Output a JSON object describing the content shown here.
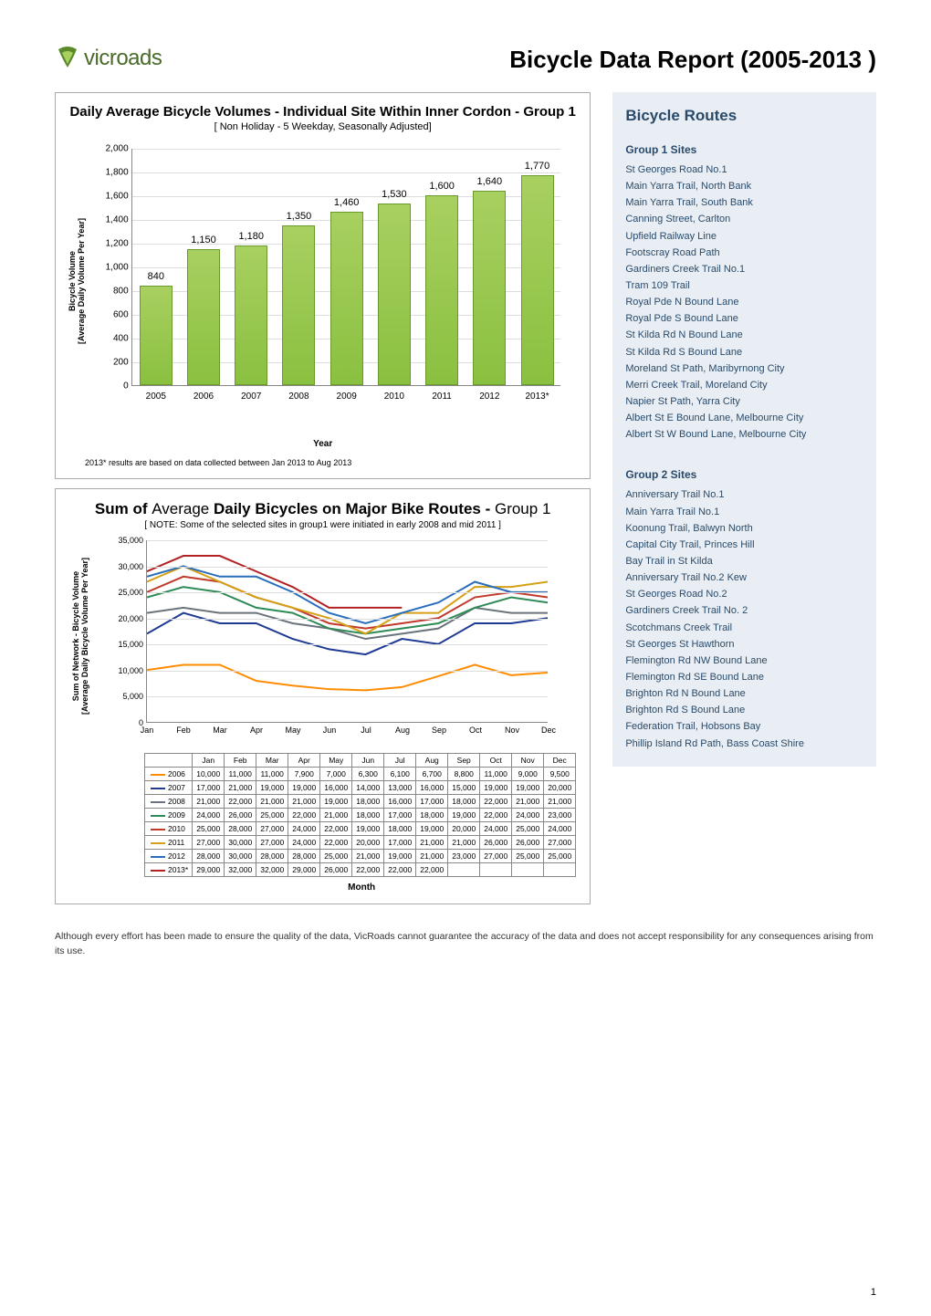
{
  "logo_text": "vicroads",
  "report_title": "Bicycle Data Report (2005-2013 )",
  "chart1": {
    "title": "Daily Average Bicycle Volumes - Individual Site Within Inner Cordon - Group 1",
    "subtitle": "[ Non Holiday - 5 Weekday, Seasonally Adjusted]",
    "y_axis_label": "Bicycle Volume\n[Average Daily Volume Per Year]",
    "x_axis_label": "Year",
    "note": "2013* results are based on data collected between Jan 2013 to Aug 2013",
    "ylim": [
      0,
      2000
    ],
    "ytick_step": 200,
    "categories": [
      "2005",
      "2006",
      "2007",
      "2008",
      "2009",
      "2010",
      "2011",
      "2012",
      "2013*"
    ],
    "values": [
      840,
      1150,
      1180,
      1350,
      1460,
      1530,
      1600,
      1640,
      1770
    ],
    "bar_fill_top": "#a8d060",
    "bar_fill_bottom": "#8ac040",
    "bar_border": "#6a9a2a",
    "grid_color": "#dddddd"
  },
  "chart2": {
    "title_prefix": "Sum of ",
    "title_mid": "Average",
    "title_bold": " Daily Bicycles on Major Bike Routes - ",
    "title_suffix": "Group 1",
    "subtitle": "[ NOTE: Some of the selected sites in group1 were initiated in early 2008 and mid 2011 ]",
    "y_axis_label": "Sum of Network - Bicycle Volume\n[Average Daily Bicycle Volume Per Year]",
    "x_axis_label": "Month",
    "ylim": [
      0,
      35000
    ],
    "ytick_step": 5000,
    "months": [
      "Jan",
      "Feb",
      "Mar",
      "Apr",
      "May",
      "Jun",
      "Jul",
      "Aug",
      "Sep",
      "Oct",
      "Nov",
      "Dec"
    ],
    "series": [
      {
        "year": "2006",
        "color": "#ff8c00",
        "values": [
          10000,
          11000,
          11000,
          7900,
          7000,
          6300,
          6100,
          6700,
          8800,
          11000,
          9000,
          9500
        ]
      },
      {
        "year": "2007",
        "color": "#1f3a93",
        "values": [
          17000,
          21000,
          19000,
          19000,
          16000,
          14000,
          13000,
          16000,
          15000,
          19000,
          19000,
          20000
        ]
      },
      {
        "year": "2008",
        "color": "#6a737b",
        "values": [
          21000,
          22000,
          21000,
          21000,
          19000,
          18000,
          16000,
          17000,
          18000,
          22000,
          21000,
          21000
        ]
      },
      {
        "year": "2009",
        "color": "#2e8b57",
        "values": [
          24000,
          26000,
          25000,
          22000,
          21000,
          18000,
          17000,
          18000,
          19000,
          22000,
          24000,
          23000
        ]
      },
      {
        "year": "2010",
        "color": "#c0392b",
        "values": [
          25000,
          28000,
          27000,
          24000,
          22000,
          19000,
          18000,
          19000,
          20000,
          24000,
          25000,
          24000
        ]
      },
      {
        "year": "2011",
        "color": "#d4a017",
        "values": [
          27000,
          30000,
          27000,
          24000,
          22000,
          20000,
          17000,
          21000,
          21000,
          26000,
          26000,
          27000
        ]
      },
      {
        "year": "2012",
        "color": "#2a6ebb",
        "values": [
          28000,
          30000,
          28000,
          28000,
          25000,
          21000,
          19000,
          21000,
          23000,
          27000,
          25000,
          25000
        ]
      },
      {
        "year": "2013*",
        "color": "#b22222",
        "values": [
          29000,
          32000,
          32000,
          29000,
          26000,
          22000,
          22000,
          22000,
          null,
          null,
          null,
          null
        ]
      }
    ],
    "grid_color": "#dddddd"
  },
  "sidebar": {
    "title": "Bicycle Routes",
    "group1_title": "Group 1 Sites",
    "group1_sites": [
      "St Georges Road No.1",
      "Main Yarra Trail, North Bank",
      "Main Yarra Trail, South Bank",
      "Canning Street, Carlton",
      "Upfield Railway Line",
      "Footscray Road Path",
      "Gardiners Creek Trail No.1",
      "Tram 109 Trail",
      "Royal Pde N Bound Lane",
      "Royal Pde S Bound Lane",
      "St Kilda Rd N Bound Lane",
      "St Kilda Rd S Bound Lane",
      "Moreland St Path, Maribyrnong City",
      "Merri Creek Trail, Moreland City",
      "Napier St Path, Yarra City",
      "Albert St E Bound Lane, Melbourne City",
      "Albert St W Bound Lane, Melbourne City"
    ],
    "group2_title": "Group 2 Sites",
    "group2_sites": [
      "Anniversary Trail No.1",
      "Main Yarra Trail No.1",
      "Koonung Trail, Balwyn North",
      "Capital City Trail, Princes Hill",
      "Bay Trail in St Kilda",
      "Anniversary Trail No.2 Kew",
      "St Georges Road No.2",
      "Gardiners Creek Trail No. 2",
      "Scotchmans Creek Trail",
      "St Georges St Hawthorn",
      "Flemington Rd NW Bound Lane",
      "Flemington Rd SE Bound Lane",
      "Brighton Rd N Bound Lane",
      "Brighton Rd S Bound Lane",
      "Federation Trail, Hobsons Bay",
      "Phillip Island Rd Path, Bass Coast Shire"
    ]
  },
  "disclaimer": "Although every effort has been made to ensure the quality of the data, VicRoads cannot guarantee the accuracy of the data and does not accept responsibility for any consequences arising from its use.",
  "page_number": "1"
}
